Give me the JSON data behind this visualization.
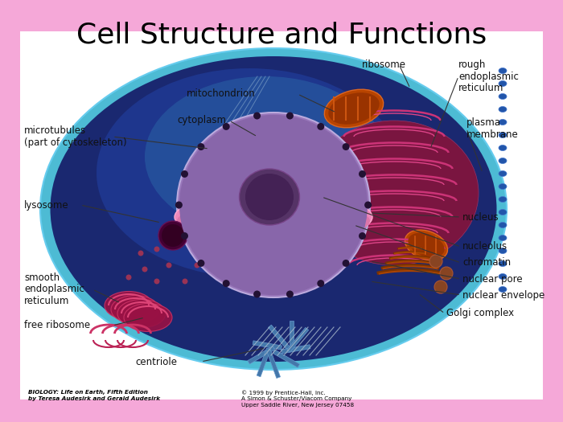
{
  "title": "Cell Structure and Functions",
  "title_fontsize": 26,
  "title_color": "#000000",
  "slide_bg": "#F5A8D8",
  "image_bg": "#FFFFFF",
  "footer_left": "BIOLOGY: Life on Earth, Fifth Edition\nby Teresa Audesirk and Gerald Audesirk",
  "footer_center": "© 1999 by Prentice-Hall, Inc.\nA Simon & Schuster/Viacom Company\nUpper Saddle River, New Jersey 07458",
  "cell_outer_color": "#1a2a6e",
  "cell_rim_color": "#3399cc",
  "cell_inner_color": "#203380",
  "nucleus_color": "#9966bb",
  "nucleus_rim_color": "#ff99cc",
  "nucleolus_color": "#663366",
  "er_color": "#882255",
  "mito_outer": "#cc5511",
  "mito_inner": "#994400",
  "golgi_color": "#994400",
  "lyso_color": "#550055",
  "smooth_er_color": "#991144",
  "label_fontsize": 8.5,
  "label_color": "#111111"
}
